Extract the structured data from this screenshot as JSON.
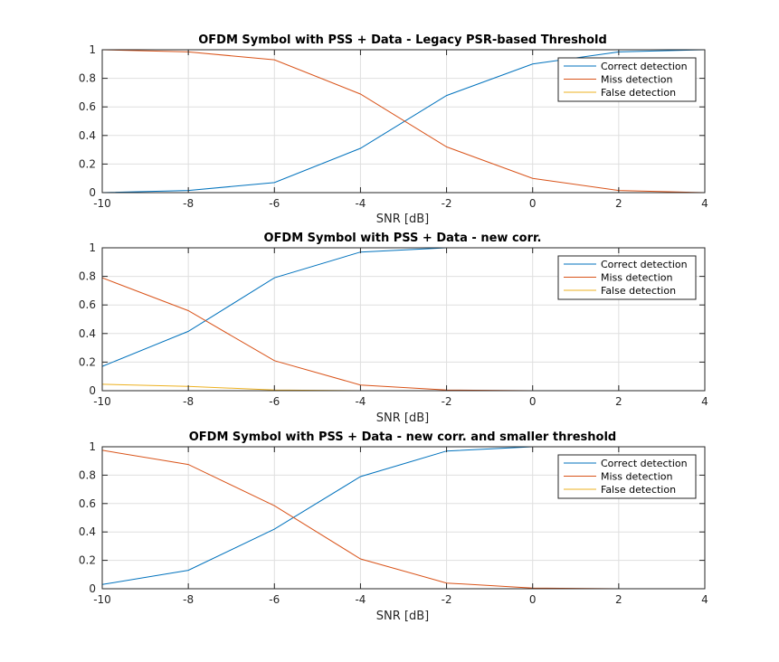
{
  "chart_data": [
    {
      "type": "line",
      "title": "OFDM Symbol with PSS + Data - Legacy PSR-based Threshold",
      "xlabel": "SNR [dB]",
      "ylabel": "",
      "x": [
        -10,
        -8,
        -6,
        -4,
        -2,
        0,
        2,
        4
      ],
      "xlim": [
        -10,
        4
      ],
      "ylim": [
        0,
        1
      ],
      "xticks": [
        "-10",
        "-8",
        "-6",
        "-4",
        "-2",
        "0",
        "2",
        "4"
      ],
      "yticks": [
        "0",
        "0.2",
        "0.4",
        "0.6",
        "0.8",
        "1"
      ],
      "grid": true,
      "legend": "top-right",
      "series": [
        {
          "name": "Correct detection",
          "color": "#0072BD",
          "values": [
            0.0,
            0.015,
            0.07,
            0.31,
            0.68,
            0.9,
            0.985,
            1.0
          ]
        },
        {
          "name": "Miss detection",
          "color": "#D95319",
          "values": [
            1.0,
            0.985,
            0.93,
            0.69,
            0.32,
            0.1,
            0.015,
            0.0
          ]
        },
        {
          "name": "False detection",
          "color": "#EDB120",
          "values": [
            0.0,
            0.0,
            0.0,
            0.0,
            0.0,
            0.0,
            0.0,
            0.0
          ]
        }
      ]
    },
    {
      "type": "line",
      "title": "OFDM Symbol with PSS + Data - new corr.",
      "xlabel": "SNR [dB]",
      "ylabel": "",
      "x": [
        -10,
        -8,
        -6,
        -4,
        -2,
        0,
        2,
        4
      ],
      "xlim": [
        -10,
        4
      ],
      "ylim": [
        0,
        1
      ],
      "xticks": [
        "-10",
        "-8",
        "-6",
        "-4",
        "-2",
        "0",
        "2",
        "4"
      ],
      "yticks": [
        "0",
        "0.2",
        "0.4",
        "0.6",
        "0.8",
        "1"
      ],
      "grid": true,
      "legend": "top-right",
      "series": [
        {
          "name": "Correct detection",
          "color": "#0072BD",
          "values": [
            0.17,
            0.415,
            0.79,
            0.97,
            1.0,
            1.0,
            1.0,
            1.0
          ]
        },
        {
          "name": "Miss detection",
          "color": "#D95319",
          "values": [
            0.79,
            0.56,
            0.21,
            0.04,
            0.005,
            0.0,
            0.0,
            0.0
          ]
        },
        {
          "name": "False detection",
          "color": "#EDB120",
          "values": [
            0.045,
            0.03,
            0.005,
            0.0,
            0.0,
            0.0,
            0.0,
            0.0
          ]
        }
      ]
    },
    {
      "type": "line",
      "title": "OFDM Symbol with PSS + Data - new corr. and smaller threshold",
      "xlabel": "SNR [dB]",
      "ylabel": "",
      "x": [
        -10,
        -8,
        -6,
        -4,
        -2,
        0,
        2,
        4
      ],
      "xlim": [
        -10,
        4
      ],
      "ylim": [
        0,
        1
      ],
      "xticks": [
        "-10",
        "-8",
        "-6",
        "-4",
        "-2",
        "0",
        "2",
        "4"
      ],
      "yticks": [
        "0",
        "0.2",
        "0.4",
        "0.6",
        "0.8",
        "1"
      ],
      "grid": true,
      "legend": "top-right",
      "series": [
        {
          "name": "Correct detection",
          "color": "#0072BD",
          "values": [
            0.03,
            0.13,
            0.42,
            0.79,
            0.97,
            1.0,
            1.0,
            1.0
          ]
        },
        {
          "name": "Miss detection",
          "color": "#D95319",
          "values": [
            0.975,
            0.875,
            0.585,
            0.21,
            0.04,
            0.005,
            0.0,
            0.0
          ]
        },
        {
          "name": "False detection",
          "color": "#EDB120",
          "values": [
            0.0,
            0.0,
            0.0,
            0.0,
            0.0,
            0.0,
            0.0,
            0.0
          ]
        }
      ]
    }
  ]
}
